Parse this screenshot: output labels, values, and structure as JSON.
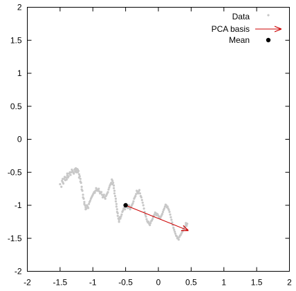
{
  "chart_data": {
    "type": "scatter",
    "title": "",
    "xlabel": "",
    "ylabel": "",
    "xlim": [
      -2,
      2
    ],
    "ylim": [
      -2,
      2
    ],
    "x_ticks": [
      -2,
      -1.5,
      -1,
      -0.5,
      0,
      0.5,
      1,
      1.5,
      2
    ],
    "y_ticks": [
      -2,
      -1.5,
      -1,
      -0.5,
      0,
      0.5,
      1,
      1.5,
      2
    ],
    "x_tick_labels": [
      "-2",
      "-1.5",
      "-1",
      "-0.5",
      "0",
      "0.5",
      "1",
      "1.5",
      "2"
    ],
    "y_tick_labels": [
      "-2",
      "-1.5",
      "-1",
      "-0.5",
      "0",
      "0.5",
      "1",
      "1.5",
      "2"
    ],
    "grid": false,
    "legend_position": "top-right",
    "colors": {
      "data": "#c8c8c8",
      "pca_basis": "#cc0000",
      "mean": "#000000"
    },
    "series": [
      {
        "name": "Data",
        "kind": "points",
        "points": [
          [
            -1.5,
            -0.68
          ],
          [
            -1.47,
            -0.63
          ],
          [
            -1.46,
            -0.65
          ],
          [
            -1.44,
            -0.6
          ],
          [
            -1.41,
            -0.58
          ],
          [
            -1.39,
            -0.55
          ],
          [
            -1.38,
            -0.58
          ],
          [
            -1.36,
            -0.52
          ],
          [
            -1.34,
            -0.54
          ],
          [
            -1.31,
            -0.48
          ],
          [
            -1.3,
            -0.5
          ],
          [
            -1.28,
            -0.46
          ],
          [
            -1.27,
            -0.49
          ],
          [
            -1.26,
            -0.44
          ],
          [
            -1.25,
            -0.47
          ],
          [
            -1.24,
            -0.45
          ],
          [
            -1.23,
            -0.5
          ],
          [
            -1.22,
            -0.48
          ],
          [
            -1.21,
            -0.53
          ],
          [
            -1.2,
            -0.56
          ],
          [
            -1.19,
            -0.6
          ],
          [
            -1.18,
            -0.66
          ],
          [
            -1.17,
            -0.72
          ],
          [
            -1.16,
            -0.78
          ],
          [
            -1.15,
            -0.84
          ],
          [
            -1.14,
            -0.9
          ],
          [
            -1.13,
            -0.95
          ],
          [
            -1.12,
            -1.0
          ],
          [
            -1.11,
            -1.03
          ],
          [
            -1.1,
            -1.05
          ],
          [
            -1.08,
            -1.02
          ],
          [
            -1.06,
            -0.98
          ],
          [
            -1.04,
            -0.93
          ],
          [
            -1.02,
            -0.88
          ],
          [
            -1.0,
            -0.84
          ],
          [
            -0.98,
            -0.8
          ],
          [
            -0.96,
            -0.78
          ],
          [
            -0.94,
            -0.76
          ],
          [
            -0.92,
            -0.77
          ],
          [
            -0.9,
            -0.79
          ],
          [
            -0.88,
            -0.81
          ],
          [
            -0.86,
            -0.84
          ],
          [
            -0.84,
            -0.86
          ],
          [
            -0.82,
            -0.88
          ],
          [
            -0.8,
            -0.86
          ],
          [
            -0.78,
            -0.82
          ],
          [
            -0.76,
            -0.76
          ],
          [
            -0.74,
            -0.7
          ],
          [
            -0.72,
            -0.66
          ],
          [
            -0.7,
            -0.63
          ],
          [
            -0.69,
            -0.66
          ],
          [
            -0.68,
            -0.7
          ],
          [
            -0.67,
            -0.78
          ],
          [
            -0.66,
            -0.86
          ],
          [
            -0.65,
            -0.94
          ],
          [
            -0.64,
            -1.02
          ],
          [
            -0.63,
            -1.1
          ],
          [
            -0.62,
            -1.16
          ],
          [
            -0.61,
            -1.2
          ],
          [
            -0.6,
            -1.22
          ],
          [
            -0.58,
            -1.2
          ],
          [
            -0.56,
            -1.14
          ],
          [
            -0.54,
            -1.08
          ],
          [
            -0.52,
            -1.04
          ],
          [
            -0.5,
            -1.01
          ],
          [
            -0.48,
            -1.0
          ],
          [
            -0.46,
            -1.02
          ],
          [
            -0.44,
            -1.04
          ],
          [
            -0.42,
            -1.03
          ],
          [
            -0.4,
            -0.99
          ],
          [
            -0.38,
            -0.94
          ],
          [
            -0.36,
            -0.88
          ],
          [
            -0.34,
            -0.83
          ],
          [
            -0.32,
            -0.8
          ],
          [
            -0.3,
            -0.79
          ],
          [
            -0.28,
            -0.82
          ],
          [
            -0.26,
            -0.88
          ],
          [
            -0.24,
            -0.96
          ],
          [
            -0.22,
            -1.05
          ],
          [
            -0.2,
            -1.14
          ],
          [
            -0.18,
            -1.21
          ],
          [
            -0.16,
            -1.26
          ],
          [
            -0.14,
            -1.28
          ],
          [
            -0.12,
            -1.27
          ],
          [
            -0.1,
            -1.23
          ],
          [
            -0.08,
            -1.18
          ],
          [
            -0.06,
            -1.14
          ],
          [
            -0.04,
            -1.12
          ],
          [
            -0.02,
            -1.13
          ],
          [
            0.0,
            -1.16
          ],
          [
            0.02,
            -1.18
          ],
          [
            0.04,
            -1.17
          ],
          [
            0.06,
            -1.13
          ],
          [
            0.08,
            -1.07
          ],
          [
            0.1,
            -1.02
          ],
          [
            0.12,
            -1.0
          ],
          [
            0.14,
            -1.02
          ],
          [
            0.16,
            -1.07
          ],
          [
            0.18,
            -1.14
          ],
          [
            0.2,
            -1.22
          ],
          [
            0.22,
            -1.3
          ],
          [
            0.24,
            -1.37
          ],
          [
            0.26,
            -1.43
          ],
          [
            0.28,
            -1.47
          ],
          [
            0.3,
            -1.49
          ],
          [
            0.32,
            -1.48
          ],
          [
            0.34,
            -1.45
          ],
          [
            0.36,
            -1.41
          ],
          [
            0.38,
            -1.37
          ],
          [
            0.4,
            -1.33
          ],
          [
            0.42,
            -1.3
          ],
          [
            0.44,
            -1.28
          ],
          [
            -1.48,
            -0.72
          ],
          [
            -1.45,
            -0.67
          ],
          [
            -1.42,
            -0.62
          ],
          [
            -1.4,
            -0.61
          ],
          [
            -1.37,
            -0.56
          ],
          [
            -1.33,
            -0.5
          ],
          [
            -1.29,
            -0.52
          ],
          [
            -1.25,
            -0.5
          ],
          [
            -1.21,
            -0.58
          ],
          [
            -1.17,
            -0.76
          ],
          [
            -1.13,
            -0.98
          ],
          [
            -1.09,
            -1.0
          ],
          [
            -1.05,
            -0.95
          ],
          [
            -1.01,
            -0.86
          ],
          [
            -0.97,
            -0.81
          ],
          [
            -0.93,
            -0.78
          ],
          [
            -0.89,
            -0.82
          ],
          [
            -0.85,
            -0.88
          ],
          [
            -0.81,
            -0.9
          ],
          [
            -0.77,
            -0.8
          ],
          [
            -0.73,
            -0.68
          ],
          [
            -0.7,
            -0.68
          ],
          [
            -0.67,
            -0.82
          ],
          [
            -0.64,
            -0.98
          ],
          [
            -0.62,
            -1.12
          ],
          [
            -0.59,
            -1.18
          ],
          [
            -0.55,
            -1.1
          ],
          [
            -0.51,
            -1.06
          ],
          [
            -0.47,
            -1.04
          ],
          [
            -0.43,
            -1.06
          ],
          [
            -0.39,
            -0.97
          ],
          [
            -0.35,
            -0.86
          ],
          [
            -0.31,
            -0.82
          ],
          [
            -0.27,
            -0.86
          ],
          [
            -0.23,
            -1.0
          ],
          [
            -0.19,
            -1.17
          ],
          [
            -0.15,
            -1.25
          ],
          [
            -0.11,
            -1.24
          ],
          [
            -0.07,
            -1.16
          ],
          [
            -0.03,
            -1.15
          ],
          [
            0.01,
            -1.18
          ],
          [
            0.05,
            -1.15
          ],
          [
            0.09,
            -1.05
          ],
          [
            0.13,
            -1.03
          ],
          [
            0.17,
            -1.1
          ],
          [
            0.21,
            -1.26
          ],
          [
            0.25,
            -1.4
          ],
          [
            0.29,
            -1.5
          ],
          [
            0.33,
            -1.46
          ],
          [
            0.37,
            -1.39
          ],
          [
            0.41,
            -1.32
          ],
          [
            0.43,
            -1.31
          ],
          [
            -1.46,
            -0.6
          ],
          [
            -1.43,
            -0.57
          ],
          [
            -1.39,
            -0.52
          ],
          [
            -1.35,
            -0.5
          ],
          [
            -1.32,
            -0.46
          ],
          [
            -1.27,
            -0.45
          ],
          [
            -1.23,
            -0.46
          ],
          [
            -1.19,
            -0.64
          ],
          [
            -1.15,
            -0.88
          ],
          [
            -1.11,
            -1.06
          ],
          [
            -1.07,
            -1.04
          ],
          [
            -1.03,
            -0.9
          ],
          [
            -0.99,
            -0.82
          ],
          [
            -0.95,
            -0.74
          ],
          [
            -0.91,
            -0.75
          ],
          [
            -0.87,
            -0.8
          ],
          [
            -0.83,
            -0.84
          ],
          [
            -0.79,
            -0.84
          ],
          [
            -0.75,
            -0.73
          ],
          [
            -0.71,
            -0.61
          ],
          [
            -0.68,
            -0.74
          ],
          [
            -0.65,
            -0.9
          ],
          [
            -0.63,
            -1.06
          ],
          [
            -0.6,
            -1.25
          ],
          [
            -0.57,
            -1.17
          ],
          [
            -0.53,
            -1.05
          ],
          [
            -0.49,
            -0.98
          ],
          [
            -0.45,
            -1.0
          ],
          [
            -0.41,
            -1.01
          ],
          [
            -0.37,
            -0.9
          ],
          [
            -0.33,
            -0.78
          ],
          [
            -0.29,
            -0.77
          ],
          [
            -0.25,
            -0.92
          ],
          [
            -0.21,
            -1.1
          ],
          [
            -0.17,
            -1.24
          ],
          [
            -0.13,
            -1.3
          ],
          [
            -0.09,
            -1.21
          ],
          [
            -0.05,
            -1.11
          ],
          [
            -0.01,
            -1.14
          ],
          [
            0.03,
            -1.2
          ],
          [
            0.07,
            -1.1
          ],
          [
            0.11,
            -0.99
          ],
          [
            0.15,
            -1.05
          ],
          [
            0.19,
            -1.18
          ],
          [
            0.23,
            -1.34
          ],
          [
            0.27,
            -1.46
          ],
          [
            0.31,
            -1.52
          ],
          [
            0.35,
            -1.43
          ],
          [
            0.39,
            -1.35
          ],
          [
            0.42,
            -1.27
          ]
        ]
      },
      {
        "name": "PCA basis",
        "kind": "arrow",
        "from": [
          -0.5,
          -1.0
        ],
        "to": [
          0.45,
          -1.38
        ]
      },
      {
        "name": "Mean",
        "kind": "point",
        "x": -0.5,
        "y": -1.0
      }
    ]
  }
}
